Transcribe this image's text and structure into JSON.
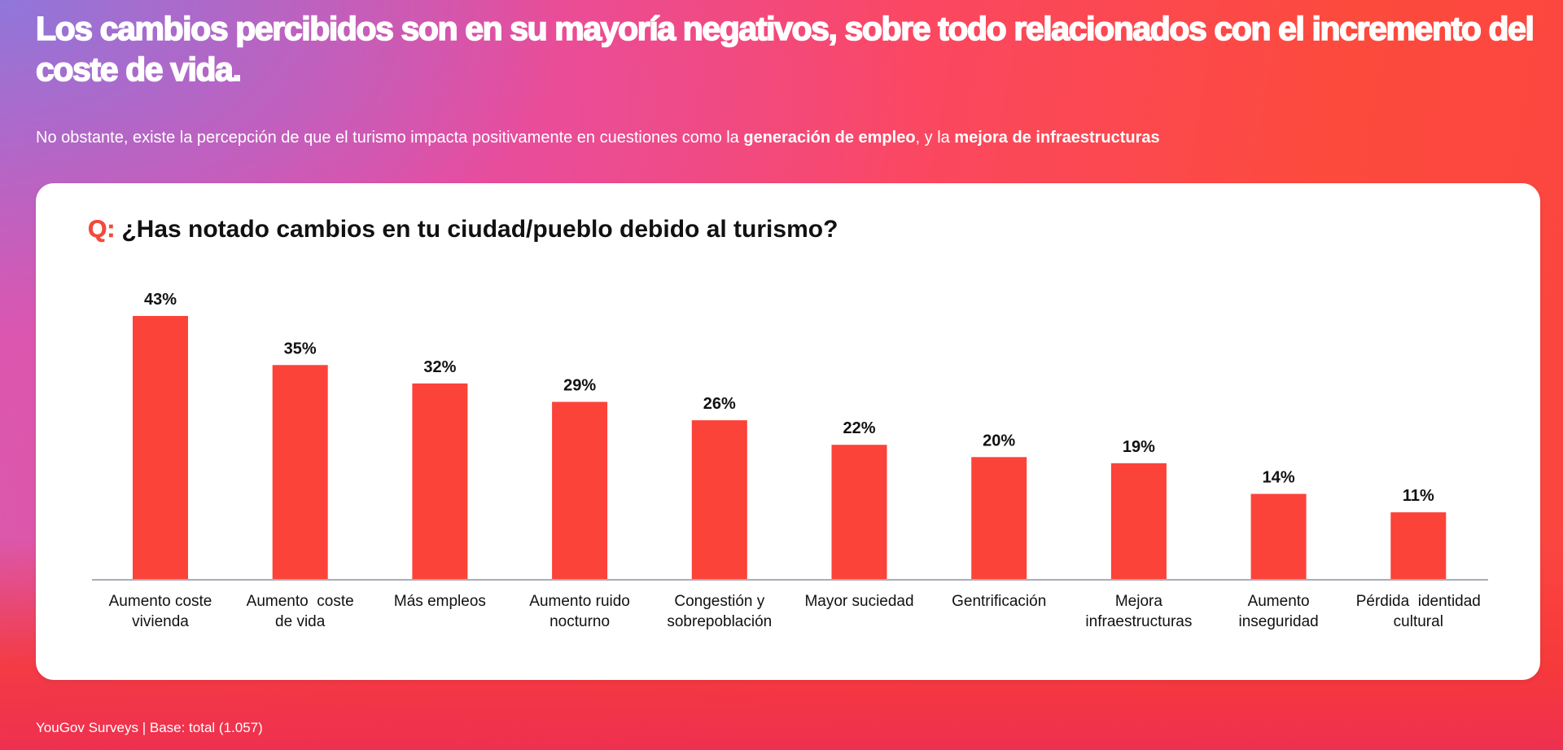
{
  "header": {
    "title": "Los cambios percibidos son en su mayoría negativos, sobre todo relacionados con el incremento del coste de vida.",
    "subtitle_parts": [
      {
        "text": "No obstante, existe la percepción de que el turismo impacta positivamente en cuestiones como la ",
        "bold": false
      },
      {
        "text": "generación de empleo",
        "bold": true
      },
      {
        "text": ", y la ",
        "bold": false
      },
      {
        "text": "mejora de infraestructuras",
        "bold": true
      }
    ]
  },
  "question": {
    "prefix": "Q:",
    "text": "¿Has notado cambios en tu ciudad/pueblo debido al turismo?"
  },
  "footer": {
    "source": "YouGov Surveys | Base: total (1.057)"
  },
  "colors": {
    "bar": "#fb4339",
    "accent": "#f34a3b",
    "axis": "#a9adb8"
  },
  "chart_data": {
    "type": "bar",
    "title": "¿Has notado cambios en tu ciudad/pueblo debido al turismo?",
    "xlabel": "",
    "ylabel": "",
    "ylim": [
      0,
      43
    ],
    "grid": false,
    "legend": "none",
    "value_suffix": "%",
    "categories": [
      [
        "Aumento coste",
        "vivienda"
      ],
      [
        "Aumento  coste",
        "de vida"
      ],
      [
        "Más empleos"
      ],
      [
        "Aumento ruido",
        "nocturno"
      ],
      [
        "Congestión y",
        "sobrepoblación"
      ],
      [
        "Mayor suciedad"
      ],
      [
        "Gentrificación"
      ],
      [
        "Mejora",
        "infraestructuras"
      ],
      [
        "Aumento",
        "inseguridad"
      ],
      [
        "Pérdida  identidad",
        "cultural"
      ]
    ],
    "values": [
      43,
      35,
      32,
      29,
      26,
      22,
      20,
      19,
      14,
      11
    ],
    "data_labels": [
      "43%",
      "35%",
      "32%",
      "29%",
      "26%",
      "22%",
      "20%",
      "19%",
      "14%",
      "11%"
    ]
  }
}
